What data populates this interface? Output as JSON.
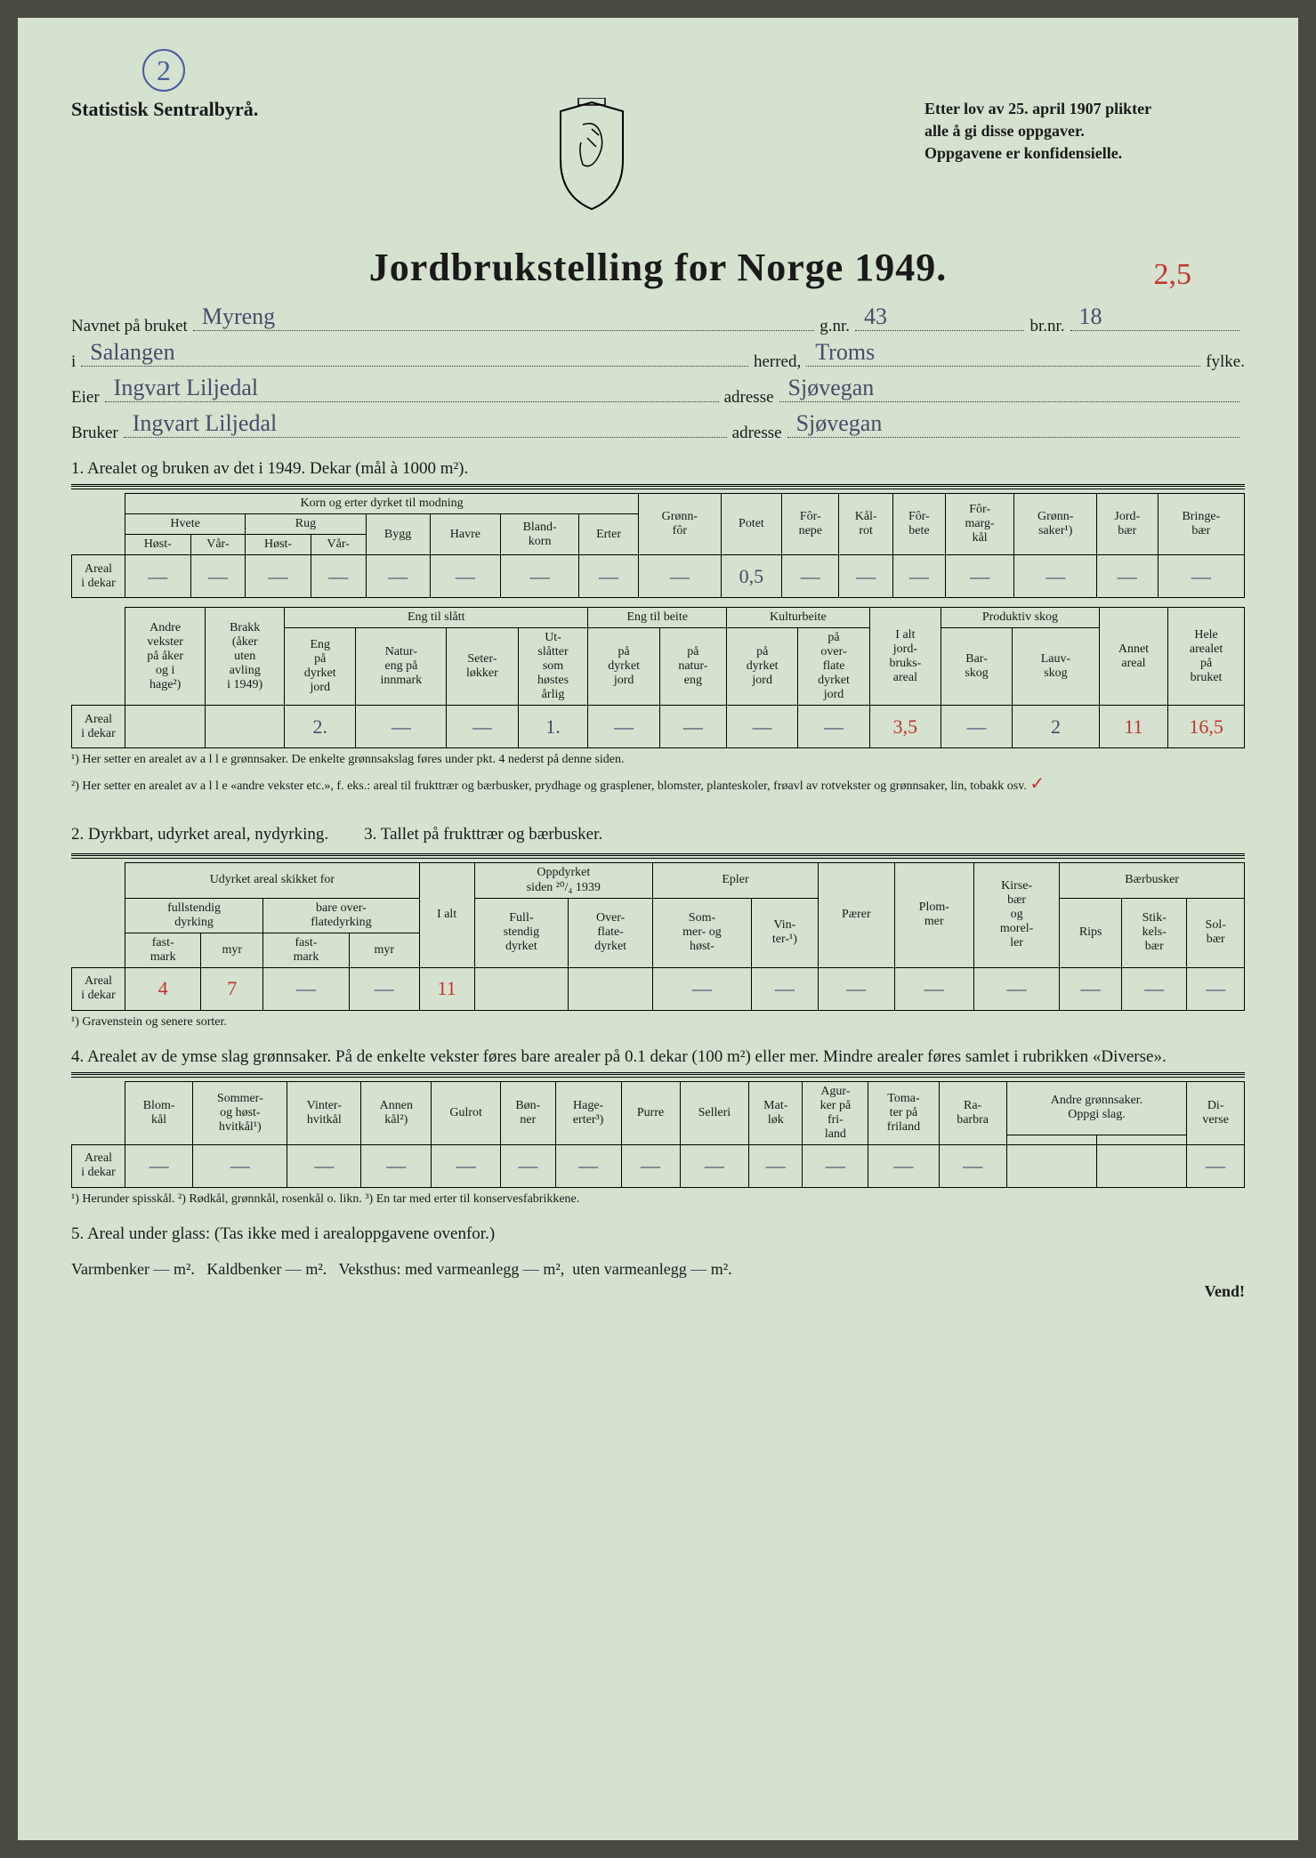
{
  "page_number_circle": "2",
  "org_name": "Statistisk Sentralbyrå.",
  "law_text_l1": "Etter lov av 25. april 1907 plikter",
  "law_text_l2": "alle å gi disse oppgaver.",
  "law_text_l3": "Oppgavene er konfidensielle.",
  "red_corner": "2,5",
  "title": "Jordbrukstelling for Norge 1949.",
  "form_labels": {
    "navnet": "Navnet på bruket",
    "gnr": "g.nr.",
    "brnr": "br.nr.",
    "i": "i",
    "herred": "herred,",
    "fylke": "fylke.",
    "eier": "Eier",
    "adresse": "adresse",
    "bruker": "Bruker"
  },
  "form_values": {
    "navnet": "Myreng",
    "gnr": "43",
    "brnr": "18",
    "i": "Salangen",
    "fylke": "Troms",
    "eier": "Ingvart Liljedal",
    "eier_adr": "Sjøvegan",
    "bruker": "Ingvart Liljedal",
    "bruker_adr": "Sjøvegan"
  },
  "sec1_title": "1. Arealet og bruken av det i 1949. Dekar (mål à 1000 m²).",
  "t1a": {
    "korn_group": "Korn og erter dyrket til modning",
    "hvete": "Hvete",
    "rug": "Rug",
    "bygg": "Bygg",
    "havre": "Havre",
    "blandkorn": "Bland-\nkorn",
    "erter": "Erter",
    "host": "Høst-",
    "var": "Vår-",
    "gronnfor": "Grønn-\nfôr",
    "potet": "Potet",
    "fornepe": "Fôr-\nnepe",
    "kalrot": "Kål-\nrot",
    "forbete": "Fôr-\nbete",
    "formargkal": "Fôr-\nmarg-\nkål",
    "gronnsaker": "Grønn-\nsaker¹)",
    "jordbaer": "Jord-\nbær",
    "bringebaer": "Bringe-\nbær",
    "row_label": "Areal\ni dekar",
    "vals": [
      "—",
      "—",
      "—",
      "—",
      "—",
      "—",
      "—",
      "—",
      "—",
      "0,5",
      "—",
      "—",
      "—",
      "—",
      "—",
      "—",
      "—"
    ]
  },
  "t1b": {
    "andre": "Andre\nvekster\npå åker\nog i\nhage²)",
    "brakk": "Brakk\n(åker\nuten\navling\ni 1949)",
    "eng_slatt": "Eng til slått",
    "eng_dyrket": "Eng\npå\ndyrket\njord",
    "natureng": "Natur-\neng på\ninnmark",
    "seter": "Seter-\nløkker",
    "utslatter": "Ut-\nslåtter\nsom\nhøstes\nårlig",
    "eng_beite": "Eng til beite",
    "beite_dyrket": "på\ndyrket\njord",
    "beite_natur": "på\nnatur-\neng",
    "kulturbeite": "Kulturbeite",
    "kb_dyrket": "på\ndyrket\njord",
    "kb_overfl": "på\nover-\nflate\ndyrket\njord",
    "ialt": "I alt\njord-\nbruks-\nareal",
    "prodskog": "Produktiv skog",
    "barskog": "Bar-\nskog",
    "lauvskog": "Lauv-\nskog",
    "annet": "Annet\nareal",
    "hele": "Hele\narealet\npå\nbruket",
    "vals": [
      "",
      "",
      "2.",
      "—",
      "—",
      "1.",
      "—",
      "—",
      "—",
      "—",
      "3,5",
      "—",
      "2",
      "11",
      "16,5"
    ],
    "red_idx": [
      10,
      13,
      14
    ]
  },
  "foot1": "¹) Her setter en arealet av a l l e grønnsaker. De enkelte grønnsakslag føres under pkt. 4 nederst på denne siden.",
  "foot2": "²) Her setter en arealet av a l l e «andre vekster etc.», f. eks.: areal til frukttrær og bærbusker, prydhage og grasplener, blomster, planteskoler, frøavl av rotvekster og grønnsaker, lin, tobakk osv.",
  "sec2_title": "2. Dyrkbart, udyrket areal, nydyrking.",
  "sec3_title": "3. Tallet på frukttrær og bærbusker.",
  "t2": {
    "udyrket": "Udyrket areal skikket for",
    "fullst": "fullstendig\ndyrking",
    "bareov": "bare over-\nflatedyrking",
    "fastmark": "fast-\nmark",
    "myr": "myr",
    "ialt": "I alt",
    "oppdyrket": "Oppdyrket\nsiden ²⁰/₄ 1939",
    "fulld": "Full-\nstendig\ndyrket",
    "overfd": "Over-\nflate-\ndyrket",
    "vals": [
      "4",
      "7",
      "—",
      "—",
      "11",
      "",
      ""
    ],
    "red_idx": [
      0,
      1,
      4
    ]
  },
  "t3": {
    "epler": "Epler",
    "sommer": "Som-\nmer- og\nhøst-",
    "vinter": "Vin-\nter-¹)",
    "paerer": "Pærer",
    "plommer": "Plom-\nmer",
    "kirse": "Kirse-\nbær\nog\nmorel-\nler",
    "baerbusker": "Bærbusker",
    "rips": "Rips",
    "stikkels": "Stik-\nkels-\nbær",
    "solbaer": "Sol-\nbær",
    "vals": [
      "—",
      "—",
      "—",
      "—",
      "—",
      "—",
      "—",
      "—"
    ]
  },
  "foot3": "¹) Gravenstein og senere sorter.",
  "sec4_title": "4. Arealet av de ymse slag grønnsaker. På de enkelte vekster føres bare arealer på 0.1 dekar (100 m²) eller mer. Mindre arealer føres samlet i rubrikken «Diverse».",
  "t4": {
    "blomkal": "Blom-\nkål",
    "sommer": "Sommer-\nog høst-\nhvitkål¹)",
    "vinter": "Vinter-\nhvitkål",
    "annen": "Annen\nkål²)",
    "gulrot": "Gulrot",
    "bonner": "Bøn-\nner",
    "hage": "Hage-\nerter³)",
    "purre": "Purre",
    "selleri": "Selleri",
    "matlok": "Mat-\nløk",
    "agurk": "Agur-\nker på\nfri-\nland",
    "tomat": "Toma-\nter på\nfriland",
    "rabarbra": "Ra-\nbarbra",
    "andre": "Andre grønnsaker.\nOppgi slag.",
    "diverse": "Di-\nverse",
    "vals": [
      "—",
      "—",
      "—",
      "—",
      "—",
      "—",
      "—",
      "—",
      "—",
      "—",
      "—",
      "—",
      "—",
      "",
      "",
      "—"
    ]
  },
  "foot4": "¹) Herunder spisskål.   ²) Rødkål, grønnkål, rosenkål o. likn.   ³) En tar med erter til konservesfabrikkene.",
  "sec5_title": "5. Areal under glass:  (Tas ikke med i arealoppgavene ovenfor.)",
  "sec5_line": {
    "varmbenker": "Varmbenker",
    "kaldbenker": "Kaldbenker",
    "veksthus": "Veksthus: med varmeanlegg",
    "uten": "uten varmeanlegg",
    "m2": "m²."
  },
  "sec5_vals": {
    "varm": "—",
    "kald": "—",
    "med": "—",
    "uten": "—"
  },
  "vend": "Vend!"
}
